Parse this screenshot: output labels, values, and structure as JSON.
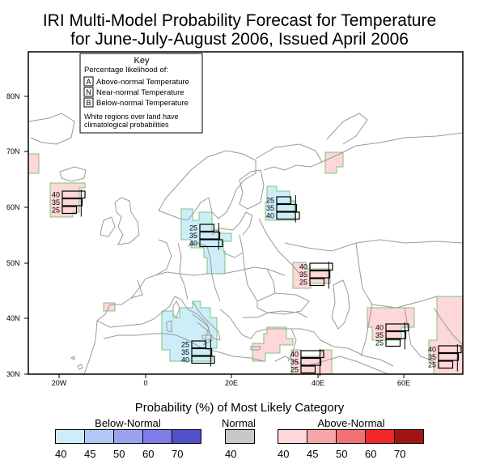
{
  "title": {
    "line1": "IRI Multi-Model Probability Forecast for Temperature",
    "line2": "for June-July-August 2006, Issued April 2006"
  },
  "key": {
    "heading": "Key",
    "subheading": "Percentage likelihood of:",
    "items": [
      {
        "letter": "A",
        "label": "Above-normal Temperature"
      },
      {
        "letter": "N",
        "label": "Near-normal Temperature"
      },
      {
        "letter": "B",
        "label": "Below-normal Temperature"
      }
    ],
    "note_line1": "White regions over land have",
    "note_line2": "climatological probabilities"
  },
  "axes": {
    "lat_labels": [
      "80N",
      "70N",
      "60N",
      "50N",
      "40N",
      "30N"
    ],
    "lon_labels": [
      "20W",
      "0",
      "20E",
      "40E",
      "60E"
    ]
  },
  "forecast_boxes": [
    {
      "region": "north-atlantic",
      "values": [
        "40",
        "35",
        "25"
      ],
      "dominant": "above"
    },
    {
      "region": "scandinavia-central-europe",
      "values": [
        "25",
        "35",
        "40"
      ],
      "dominant": "below"
    },
    {
      "region": "northwest-russia",
      "values": [
        "25",
        "35",
        "40"
      ],
      "dominant": "below"
    },
    {
      "region": "southern-russia",
      "values": [
        "40",
        "35",
        "25"
      ],
      "dominant": "above"
    },
    {
      "region": "central-mediterranean",
      "values": [
        "25",
        "35",
        "40"
      ],
      "dominant": "below"
    },
    {
      "region": "iran",
      "values": [
        "40",
        "35",
        "25"
      ],
      "dominant": "above"
    },
    {
      "region": "middle-east",
      "values": [
        "40",
        "35",
        "25"
      ],
      "dominant": "above"
    },
    {
      "region": "south-asia",
      "values": [
        "40",
        "35",
        "25"
      ],
      "dominant": "above"
    }
  ],
  "colors": {
    "below_region": "#cdeef8",
    "above_region": "#fdd7d9",
    "region_border": "#7cc47c",
    "coast": "#9a9a9a",
    "below_scale": [
      "#cdeef8",
      "#b4c8f6",
      "#9aa2f0",
      "#7e7ce8",
      "#5050c8"
    ],
    "normal_scale": [
      "#c8c8c8"
    ],
    "above_scale": [
      "#fdd7d9",
      "#f6a6a9",
      "#f07276",
      "#f02828",
      "#a01414"
    ]
  },
  "legend": {
    "title": "Probability (%) of Most Likely Category",
    "below_label": "Below-Normal",
    "normal_label": "Normal",
    "above_label": "Above-Normal",
    "below_ticks": [
      "40",
      "45",
      "50",
      "60",
      "70"
    ],
    "normal_ticks": [
      "40"
    ],
    "above_ticks": [
      "40",
      "45",
      "50",
      "60",
      "70"
    ]
  }
}
